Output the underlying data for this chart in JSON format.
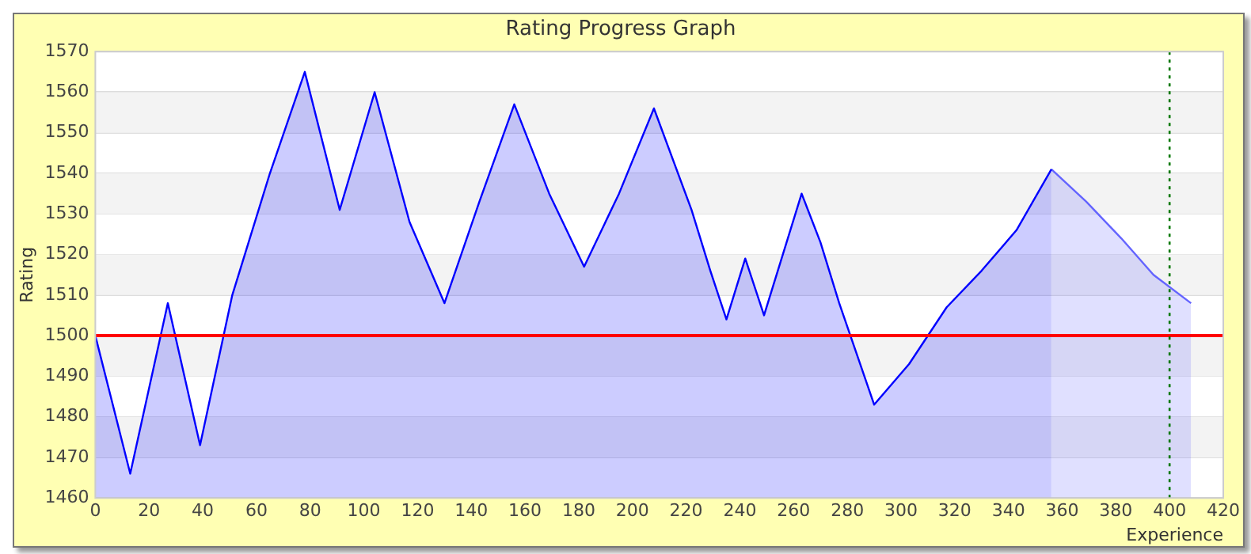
{
  "chart_data": {
    "type": "area",
    "title": "Rating Progress Graph",
    "xlabel": "Experience",
    "ylabel": "Rating",
    "series": [
      {
        "color": "#0000ff",
        "x": [
          0,
          13,
          27,
          39,
          51,
          65,
          78,
          91,
          104,
          117,
          130,
          143,
          156,
          169,
          182,
          195,
          208,
          222,
          229,
          235,
          242,
          249,
          263,
          270,
          277,
          290,
          303,
          317,
          330,
          343,
          356
        ],
        "values": [
          1500,
          1466,
          1508,
          1473,
          1510,
          1540,
          1565,
          1531,
          1560,
          1528,
          1508,
          1533,
          1557,
          1535,
          1517,
          1535,
          1556,
          1531,
          1516,
          1504,
          1519,
          1505,
          1535,
          1523,
          1508,
          1483,
          1493,
          1507,
          1516,
          1526,
          1541
        ]
      },
      {
        "color": "#6464ff",
        "x": [
          356,
          369,
          382,
          394,
          408
        ],
        "values": [
          1541,
          1533,
          1524,
          1515,
          1508
        ]
      }
    ],
    "xlim": [
      0,
      420
    ],
    "xticks": [
      0,
      20,
      40,
      60,
      80,
      100,
      120,
      140,
      160,
      180,
      200,
      220,
      240,
      260,
      280,
      300,
      320,
      340,
      360,
      380,
      400,
      420
    ],
    "ylim": [
      1460,
      1570
    ],
    "yticks": [
      1460,
      1470,
      1480,
      1490,
      1500,
      1510,
      1520,
      1530,
      1540,
      1550,
      1560,
      1570
    ],
    "ref_lines": [
      {
        "axis": "y",
        "value": 1500,
        "color": "#ff0000",
        "line_style": "solid"
      },
      {
        "axis": "x",
        "value": 400,
        "color": "#007700",
        "line_style": "dotted"
      }
    ],
    "grid": "y",
    "legend": false,
    "marker": "none",
    "line_style": "solid"
  }
}
